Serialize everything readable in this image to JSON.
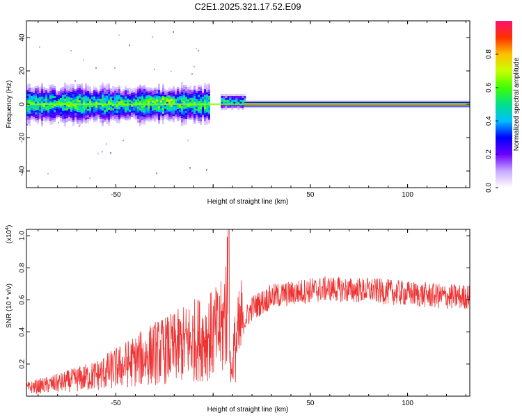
{
  "title": "C2E1.2025.321.17.52.E09",
  "colors": {
    "snr_line": "#ee3333",
    "spectrogram_background": "#ffffff",
    "frame": "#000000"
  },
  "chart_data": [
    {
      "type": "heatmap",
      "name": "spectrogram",
      "xlabel": "Height of straight line (km)",
      "ylabel": "Frequency (Hz)",
      "xlim": [
        -96,
        132
      ],
      "ylim": [
        -50,
        50
      ],
      "xticks": [
        -50,
        0,
        50,
        100
      ],
      "xtick_labels": [
        "-50",
        "",
        "50",
        "100"
      ],
      "yticks": [
        -40,
        -20,
        0,
        20,
        40
      ],
      "ytick_labels": [
        "-40",
        "-20",
        "0",
        "20",
        "40"
      ],
      "colorbar": {
        "label": "Normalized spectral amplitude",
        "range": [
          0,
          1
        ],
        "ticks": [
          0.0,
          0.2,
          0.4,
          0.6,
          0.8
        ],
        "tick_labels": [
          "0.0",
          "0.2",
          "0.4",
          "0.6",
          "0.8"
        ],
        "colormap": [
          "#ffffff",
          "#c8a8ff",
          "#6a00ff",
          "#0000ff",
          "#00bfff",
          "#00e08a",
          "#40ff00",
          "#c8ff00",
          "#ffc000",
          "#ff3000",
          "#ff1070"
        ]
      },
      "features": {
        "dominant_frequency_hz": 0,
        "noisy_band_x_range_km": [
          -96,
          -2
        ],
        "noisy_band_halfwidth_hz": 8,
        "burst_x_range_km": [
          4,
          16
        ],
        "steady_tone_x_range_km": [
          16,
          132
        ]
      },
      "grid": false
    },
    {
      "type": "line",
      "name": "snr",
      "xlabel": "Height of straight line (km)",
      "ylabel": "SNR (10 * v/v)",
      "y_multiplier_label": "(x10",
      "y_multiplier_exponent": "4",
      "xlim": [
        -96,
        132
      ],
      "ylim": [
        0,
        1.04
      ],
      "xticks": [
        -50,
        0,
        50,
        100
      ],
      "xtick_labels": [
        "-50",
        "",
        "50",
        "100"
      ],
      "yticks": [
        0.2,
        0.4,
        0.6,
        0.8,
        1.0
      ],
      "ytick_labels": [
        "0.2",
        "0.4",
        "0.6",
        "0.8",
        "1.0"
      ],
      "envelope": {
        "x": [
          -96,
          -80,
          -60,
          -40,
          -30,
          -20,
          -10,
          0,
          5,
          8,
          10,
          15,
          20,
          30,
          40,
          50,
          60,
          70,
          80,
          90,
          100,
          110,
          120,
          132
        ],
        "y": [
          0.05,
          0.08,
          0.13,
          0.22,
          0.27,
          0.3,
          0.35,
          0.38,
          0.42,
          0.7,
          0.25,
          0.45,
          0.55,
          0.62,
          0.64,
          0.66,
          0.67,
          0.66,
          0.66,
          0.65,
          0.64,
          0.63,
          0.62,
          0.62
        ]
      },
      "peak": {
        "x": 8,
        "y": 1.04
      },
      "grid": false
    }
  ]
}
